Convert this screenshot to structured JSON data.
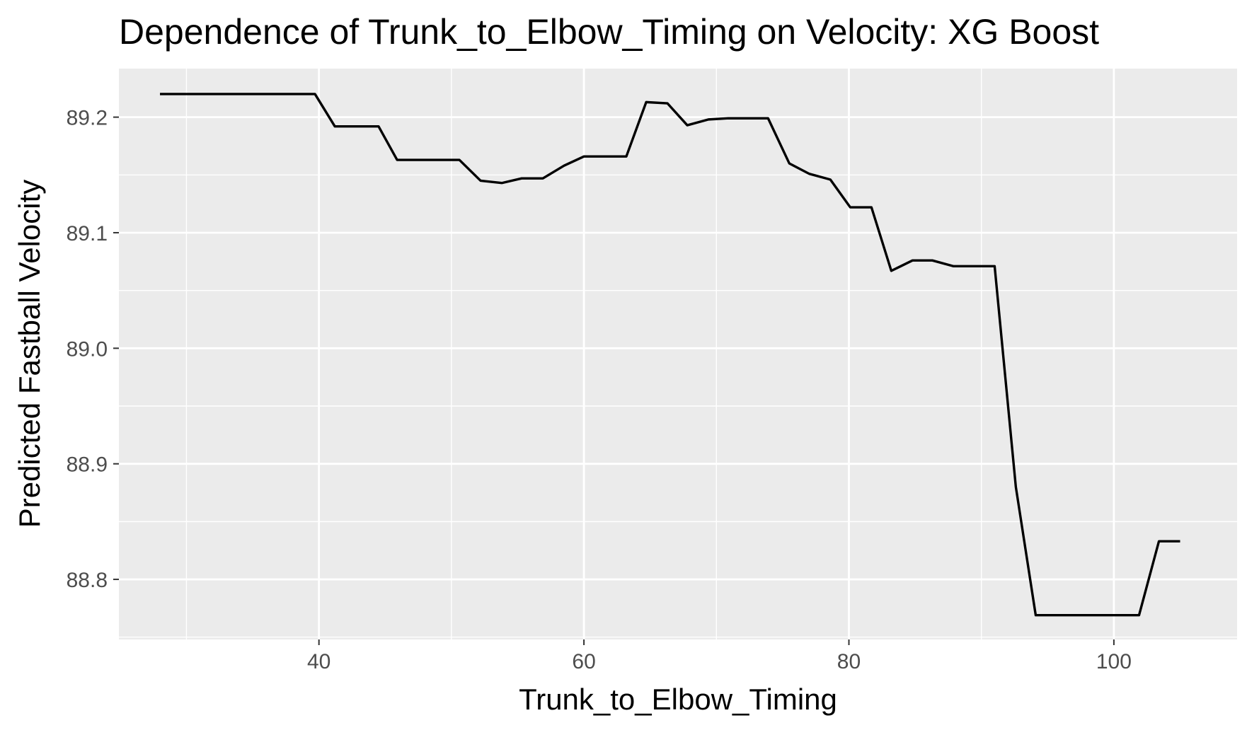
{
  "chart_data": {
    "type": "line",
    "title": "Dependence of Trunk_to_Elbow_Timing on Velocity: XG Boost",
    "xlabel": "Trunk_to_Elbow_Timing",
    "ylabel": "Predicted Fastball Velocity",
    "xlim": [
      24.9,
      109.3
    ],
    "ylim": [
      88.748,
      89.242
    ],
    "x_ticks": [
      40,
      60,
      80,
      100
    ],
    "x_tick_labels": [
      "40",
      "60",
      "80",
      "100"
    ],
    "y_ticks": [
      88.8,
      88.9,
      89.0,
      89.1,
      89.2
    ],
    "y_tick_labels": [
      "88.8",
      "88.9",
      "89.0",
      "89.1",
      "89.2"
    ],
    "grid": true,
    "background": "#EBEBEB",
    "line_color": "#000000",
    "series": [
      {
        "x": [
          28.0,
          39.7,
          41.2,
          44.5,
          45.9,
          50.6,
          52.2,
          53.8,
          55.3,
          56.9,
          58.5,
          60.0,
          61.6,
          63.2,
          64.7,
          66.3,
          67.8,
          69.4,
          70.9,
          73.9,
          75.5,
          77.0,
          78.6,
          80.1,
          81.7,
          83.2,
          84.8,
          86.3,
          87.9,
          89.4,
          91.0,
          92.6,
          94.1,
          95.7,
          97.2,
          98.8,
          100.3,
          101.9,
          103.4,
          105.0
        ],
        "y": [
          89.22,
          89.22,
          89.192,
          89.192,
          89.163,
          89.163,
          89.145,
          89.143,
          89.147,
          89.147,
          89.158,
          89.166,
          89.166,
          89.166,
          89.213,
          89.212,
          89.193,
          89.198,
          89.199,
          89.199,
          89.16,
          89.151,
          89.146,
          89.122,
          89.122,
          89.067,
          89.076,
          89.076,
          89.071,
          89.071,
          89.071,
          88.88,
          88.769,
          88.769,
          88.769,
          88.769,
          88.769,
          88.769,
          88.833,
          88.833
        ]
      }
    ]
  }
}
